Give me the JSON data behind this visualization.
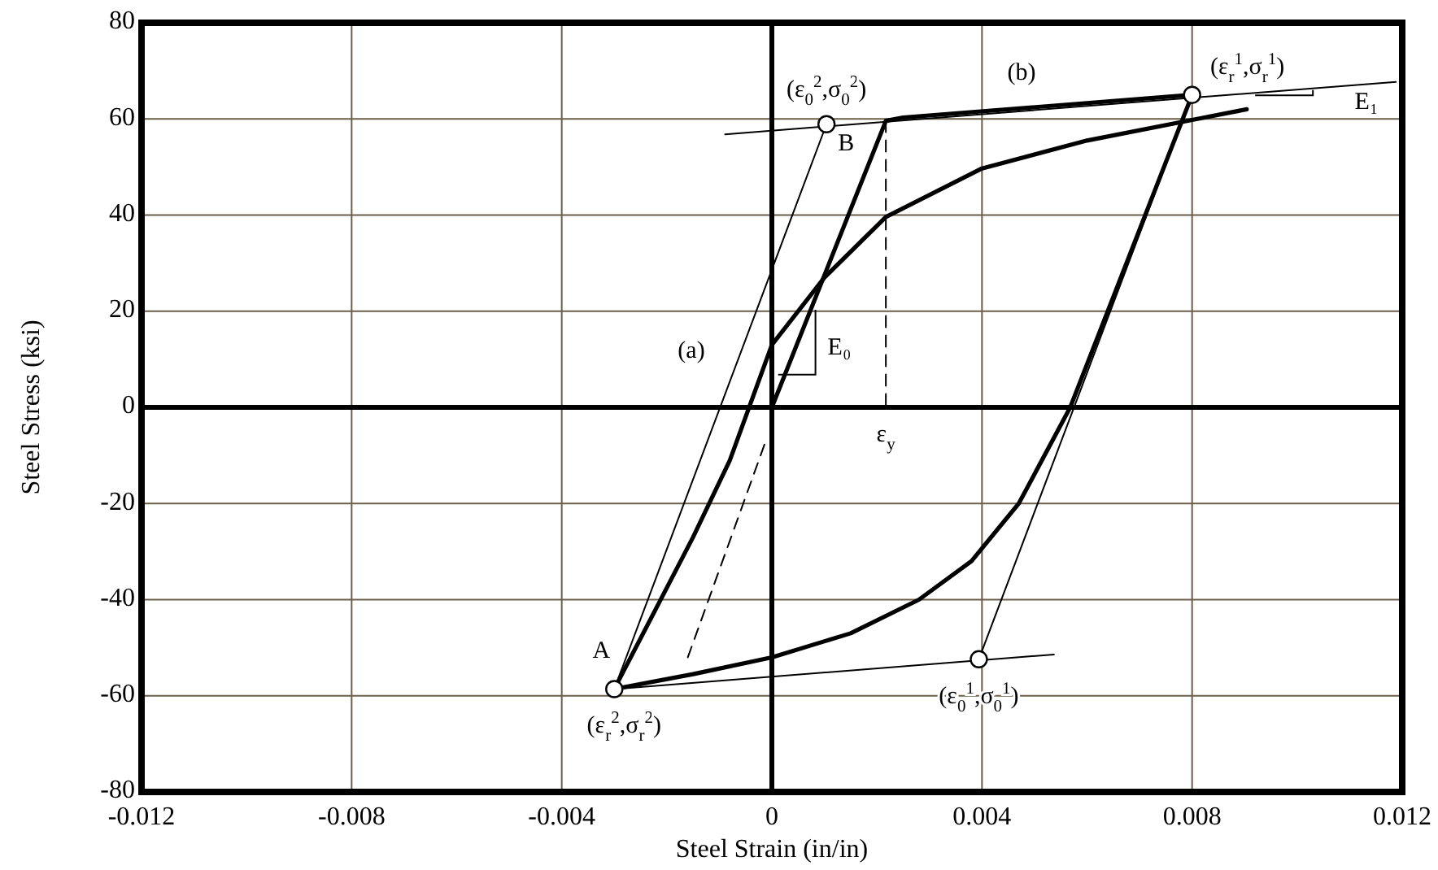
{
  "chart_data": {
    "type": "line",
    "xlabel": "Steel Strain (in/in)",
    "ylabel": "Steel Stress (ksi)",
    "xlim": [
      -0.012,
      0.012
    ],
    "ylim": [
      -80,
      80
    ],
    "xticks": [
      -0.012,
      -0.008,
      -0.004,
      0,
      0.004,
      0.008,
      0.012
    ],
    "yticks": [
      -80,
      -60,
      -40,
      -20,
      0,
      20,
      40,
      60,
      80
    ],
    "grid": true,
    "series": [
      {
        "color": "#000000",
        "x": [
          0,
          0.00217,
          0.0025,
          0.008
        ],
        "values": [
          0,
          59.6,
          60.3,
          65
        ]
      },
      {
        "color": "#000000",
        "x": [
          0.008,
          0.00568,
          0.0047,
          0.0038,
          0.0028,
          0.0015,
          0,
          -0.0015,
          -0.003
        ],
        "values": [
          65,
          0,
          -20,
          -32,
          -40,
          -47,
          -52,
          -55.5,
          -58.6
        ]
      },
      {
        "color": "#000000",
        "x": [
          -0.003,
          -0.0015,
          -0.0008,
          0,
          0.001,
          0.00217,
          0.004,
          0.006,
          0.008,
          0.00904
        ],
        "values": [
          -58.6,
          -27,
          -11,
          13,
          27,
          39.6,
          49.7,
          55.5,
          59.8,
          62
        ]
      },
      {
        "color": "#000000",
        "x": [
          -0.00089,
          0.01188
        ],
        "values": [
          56.8,
          67.7
        ]
      },
      {
        "color": "#000000",
        "x": [
          -0.003,
          0.00104
        ],
        "values": [
          -58.6,
          58.9
        ]
      },
      {
        "color": "#000000",
        "x": [
          -0.003,
          0.00537
        ],
        "values": [
          -58.6,
          -51.4
        ]
      },
      {
        "color": "#000000",
        "x": [
          0.00394,
          0.008
        ],
        "values": [
          -52.4,
          65
        ]
      },
      {
        "color": "#000000",
        "x": [
          0.00217,
          0.00217
        ],
        "values": [
          59.6,
          0
        ],
        "line_style": "dashed"
      },
      {
        "color": "#000000",
        "x": [
          -0.0016,
          -0.0001
        ],
        "values": [
          -52,
          -6.5
        ],
        "line_style": "dashed"
      },
      {
        "type": "scatter",
        "marker": "circle",
        "color": "#000000",
        "x": [
          -0.003,
          0.00104,
          0.00394,
          0.008
        ],
        "values": [
          -58.6,
          58.9,
          -52.4,
          65
        ]
      }
    ],
    "annotations": [
      {
        "text": "(ε$_{0}$$^{2}$,σ$_{0}$$^{2}$)",
        "x": 0.00104,
        "y": 58.9
      },
      {
        "text": "B",
        "x": 0.00104,
        "y": 58.9
      },
      {
        "text": "(ε$_{r}$$^{1}$,σ$_{r}$$^{1}$)",
        "x": 0.008,
        "y": 65
      },
      "(b)",
      "(a)",
      "E₀",
      {
        "text": "ε$_{y}$",
        "x": 0.00217,
        "y": 0
      },
      "E₁",
      {
        "text": "A",
        "x": -0.003,
        "y": -58.6
      },
      {
        "text": "(ε$_{r}$$^{2}$,σ$_{r}$$^{2}$)",
        "x": -0.003,
        "y": -58.6
      },
      {
        "text": "(ε$_{0}$$^{1}$,σ$_{0}$$^{1}$)",
        "x": 0.00394,
        "y": -52.4
      }
    ]
  }
}
